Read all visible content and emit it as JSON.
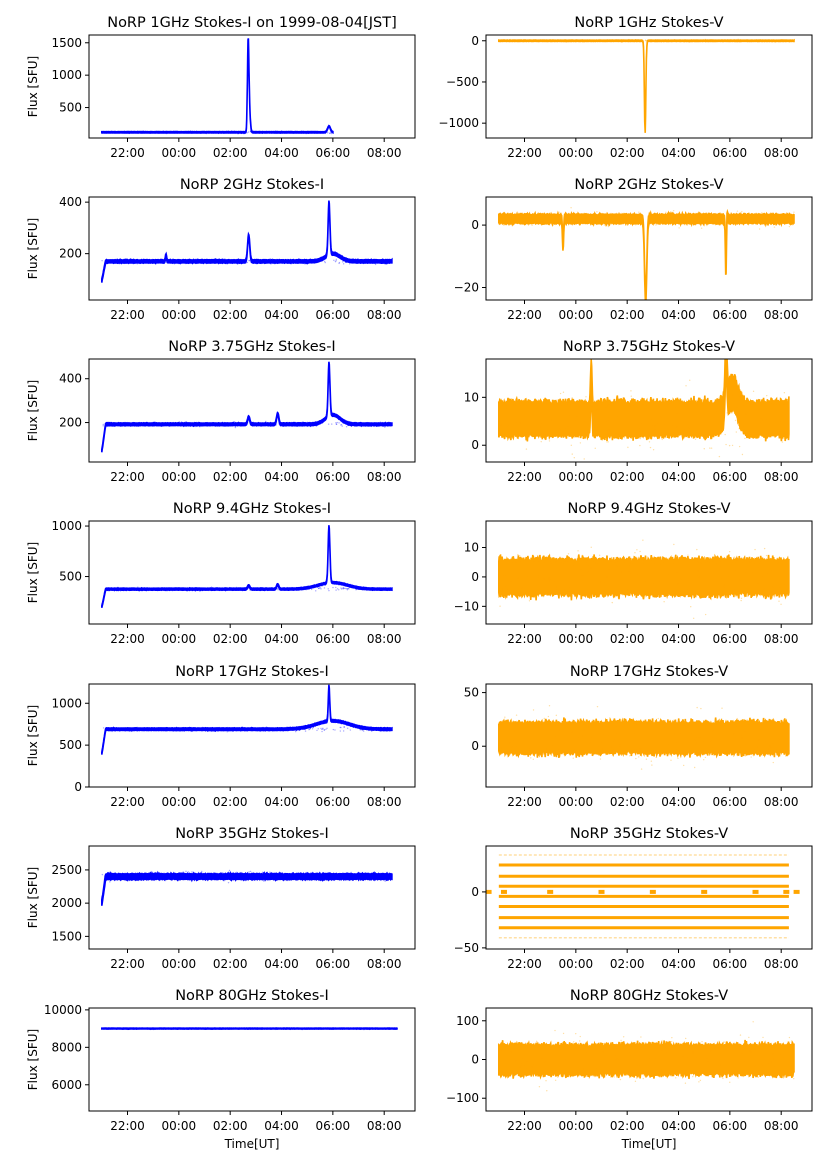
{
  "figure": {
    "x_tick_labels": [
      "22:00",
      "00:00",
      "02:00",
      "04:00",
      "06:00",
      "08:00"
    ],
    "xlabel": "Time[UT]",
    "ylabel_left": "Flux [SFU]",
    "colors": {
      "stokes_i": "#0000ff",
      "stokes_v": "#ffa500",
      "axes": "#000000"
    }
  },
  "chart_data": [
    {
      "type": "scatter",
      "row": 0,
      "col": 0,
      "title": "NoRP 1GHz Stokes-I on 1999-08-04[JST]",
      "ylabel": "Flux [SFU]",
      "xlabel": "",
      "xlim_hours": [
        -3.5,
        9.2
      ],
      "data_range_hours": [
        -3.0,
        6.0
      ],
      "ylim": [
        30,
        1620
      ],
      "yticks": [
        500,
        1000,
        1500
      ],
      "baseline": 118,
      "noise": 8,
      "events": [
        {
          "t": 2.7,
          "peak": 1450,
          "width": 0.04
        },
        {
          "t": 2.75,
          "peak": 450,
          "width": 0.05
        },
        {
          "t": 5.85,
          "peak": 210,
          "width": 0.08
        }
      ]
    },
    {
      "type": "scatter",
      "row": 0,
      "col": 1,
      "title": "NoRP 1GHz Stokes-V",
      "ylabel": "",
      "xlabel": "",
      "xlim_hours": [
        -3.5,
        9.2
      ],
      "data_range_hours": [
        -3.0,
        8.5
      ],
      "ylim": [
        -1180,
        70
      ],
      "yticks": [
        -1000,
        -500,
        0
      ],
      "baseline": 0,
      "noise": 6,
      "events": [
        {
          "t": 2.7,
          "peak": -1150,
          "width": 0.04
        },
        {
          "t": 2.72,
          "peak": 60,
          "width": 0.03
        }
      ]
    },
    {
      "type": "scatter",
      "row": 1,
      "col": 0,
      "title": "NoRP 2GHz Stokes-I",
      "ylabel": "Flux [SFU]",
      "xlabel": "",
      "xlim_hours": [
        -3.5,
        9.2
      ],
      "data_range_hours": [
        -3.0,
        8.3
      ],
      "ylim": [
        20,
        420
      ],
      "yticks": [
        200,
        400
      ],
      "baseline": 170,
      "noise": 5,
      "start_value": 95,
      "events": [
        {
          "t": -0.5,
          "peak": 195,
          "width": 0.03
        },
        {
          "t": 2.72,
          "peak": 270,
          "width": 0.06
        },
        {
          "t": 5.85,
          "peak": 375,
          "width": 0.05
        },
        {
          "t": 6.0,
          "peak": 200,
          "width": 0.4
        }
      ]
    },
    {
      "type": "scatter",
      "row": 1,
      "col": 1,
      "title": "NoRP 2GHz Stokes-V",
      "ylabel": "",
      "xlabel": "",
      "xlim_hours": [
        -3.5,
        9.2
      ],
      "data_range_hours": [
        -3.0,
        8.5
      ],
      "ylim": [
        -24,
        9
      ],
      "yticks": [
        -20,
        0
      ],
      "baseline": 2,
      "noise": 1.2,
      "events": [
        {
          "t": -0.5,
          "peak": -7,
          "width": 0.03
        },
        {
          "t": 2.72,
          "peak": -24,
          "width": 0.06
        },
        {
          "t": 5.85,
          "peak": -20,
          "width": 0.03
        },
        {
          "t": 5.87,
          "peak": 9,
          "width": 0.03
        }
      ]
    },
    {
      "type": "scatter",
      "row": 2,
      "col": 0,
      "title": "NoRP 3.75GHz Stokes-I",
      "ylabel": "Flux [SFU]",
      "xlabel": "",
      "xlim_hours": [
        -3.5,
        9.2
      ],
      "data_range_hours": [
        -3.0,
        8.3
      ],
      "ylim": [
        20,
        490
      ],
      "yticks": [
        200,
        400
      ],
      "baseline": 192,
      "noise": 5,
      "start_value": 70,
      "events": [
        {
          "t": 2.72,
          "peak": 225,
          "width": 0.06
        },
        {
          "t": 3.85,
          "peak": 240,
          "width": 0.06
        },
        {
          "t": 5.85,
          "peak": 435,
          "width": 0.05
        },
        {
          "t": 6.0,
          "peak": 235,
          "width": 0.4
        }
      ]
    },
    {
      "type": "scatter",
      "row": 2,
      "col": 1,
      "title": "NoRP 3.75GHz Stokes-V",
      "ylabel": "",
      "xlabel": "",
      "xlim_hours": [
        -3.5,
        9.2
      ],
      "data_range_hours": [
        -3.0,
        8.3
      ],
      "ylim": [
        -3.5,
        18
      ],
      "yticks": [
        0,
        10
      ],
      "baseline": 5.5,
      "noise": 3,
      "events": [
        {
          "t": 0.6,
          "peak": 14,
          "width": 0.04
        },
        {
          "t": 5.85,
          "peak": 17,
          "width": 0.05
        },
        {
          "t": 6.1,
          "peak": 11,
          "width": 0.3
        }
      ]
    },
    {
      "type": "scatter",
      "row": 3,
      "col": 0,
      "title": "NoRP 9.4GHz Stokes-I",
      "ylabel": "Flux [SFU]",
      "xlabel": "",
      "xlim_hours": [
        -3.5,
        9.2
      ],
      "data_range_hours": [
        -3.0,
        8.3
      ],
      "ylim": [
        30,
        1050
      ],
      "yticks": [
        500,
        1000
      ],
      "baseline": 375,
      "noise": 8,
      "start_value": 200,
      "events": [
        {
          "t": 2.72,
          "peak": 410,
          "width": 0.06
        },
        {
          "t": 3.85,
          "peak": 420,
          "width": 0.06
        },
        {
          "t": 5.85,
          "peak": 940,
          "width": 0.05
        },
        {
          "t": 6.0,
          "peak": 440,
          "width": 0.8
        }
      ]
    },
    {
      "type": "scatter",
      "row": 3,
      "col": 1,
      "title": "NoRP 9.4GHz Stokes-V",
      "ylabel": "",
      "xlabel": "",
      "xlim_hours": [
        -3.5,
        9.2
      ],
      "data_range_hours": [
        -3.0,
        8.3
      ],
      "ylim": [
        -16,
        19
      ],
      "yticks": [
        -10,
        0,
        10
      ],
      "baseline": 0,
      "noise": 5,
      "events": []
    },
    {
      "type": "scatter",
      "row": 4,
      "col": 0,
      "title": "NoRP 17GHz Stokes-I",
      "ylabel": "Flux [SFU]",
      "xlabel": "",
      "xlim_hours": [
        -3.5,
        9.2
      ],
      "data_range_hours": [
        -3.0,
        8.3
      ],
      "ylim": [
        0,
        1230
      ],
      "yticks": [
        0,
        500,
        1000
      ],
      "baseline": 690,
      "noise": 12,
      "start_value": 400,
      "events": [
        {
          "t": 5.85,
          "peak": 1110,
          "width": 0.04
        },
        {
          "t": 6.0,
          "peak": 790,
          "width": 0.9
        }
      ]
    },
    {
      "type": "scatter",
      "row": 4,
      "col": 1,
      "title": "NoRP 17GHz Stokes-V",
      "ylabel": "",
      "xlabel": "",
      "xlim_hours": [
        -3.5,
        9.2
      ],
      "data_range_hours": [
        -3.0,
        8.3
      ],
      "ylim": [
        -38,
        58
      ],
      "yticks": [
        0,
        50
      ],
      "baseline": 8,
      "noise": 12,
      "events": []
    },
    {
      "type": "scatter",
      "row": 5,
      "col": 0,
      "title": "NoRP 35GHz Stokes-I",
      "ylabel": "Flux [SFU]",
      "xlabel": "",
      "xlim_hours": [
        -3.5,
        9.2
      ],
      "data_range_hours": [
        -3.0,
        8.3
      ],
      "ylim": [
        1310,
        2860
      ],
      "yticks": [
        1500,
        2000,
        2500
      ],
      "baseline": 2400,
      "noise": 35,
      "start_value": 2000,
      "events": []
    },
    {
      "type": "scatter",
      "row": 5,
      "col": 1,
      "title": "NoRP 35GHz Stokes-V",
      "ylabel": "",
      "xlabel": "",
      "xlim_hours": [
        -3.5,
        9.2
      ],
      "data_range_hours": [
        -3.0,
        8.3
      ],
      "ylim": [
        -51,
        41
      ],
      "yticks": [
        -50,
        0
      ],
      "quantized_levels": [
        -41,
        -32,
        -23,
        -13,
        -4,
        5,
        14,
        24,
        33
      ],
      "events": []
    },
    {
      "type": "scatter",
      "row": 6,
      "col": 0,
      "title": "NoRP 80GHz Stokes-I",
      "ylabel": "Flux [SFU]",
      "xlabel": "Time[UT]",
      "xlim_hours": [
        -3.5,
        9.2
      ],
      "data_range_hours": [
        -3.0,
        8.5
      ],
      "ylim": [
        4600,
        10100
      ],
      "yticks": [
        6000,
        8000,
        10000
      ],
      "baseline": 9000,
      "noise": 20,
      "events": []
    },
    {
      "type": "scatter",
      "row": 6,
      "col": 1,
      "title": "NoRP 80GHz Stokes-V",
      "ylabel": "",
      "xlabel": "Time[UT]",
      "xlim_hours": [
        -3.5,
        9.2
      ],
      "data_range_hours": [
        -3.0,
        8.5
      ],
      "ylim": [
        -133,
        133
      ],
      "yticks": [
        -100,
        0,
        100
      ],
      "baseline": 0,
      "noise": 32,
      "events": []
    }
  ]
}
